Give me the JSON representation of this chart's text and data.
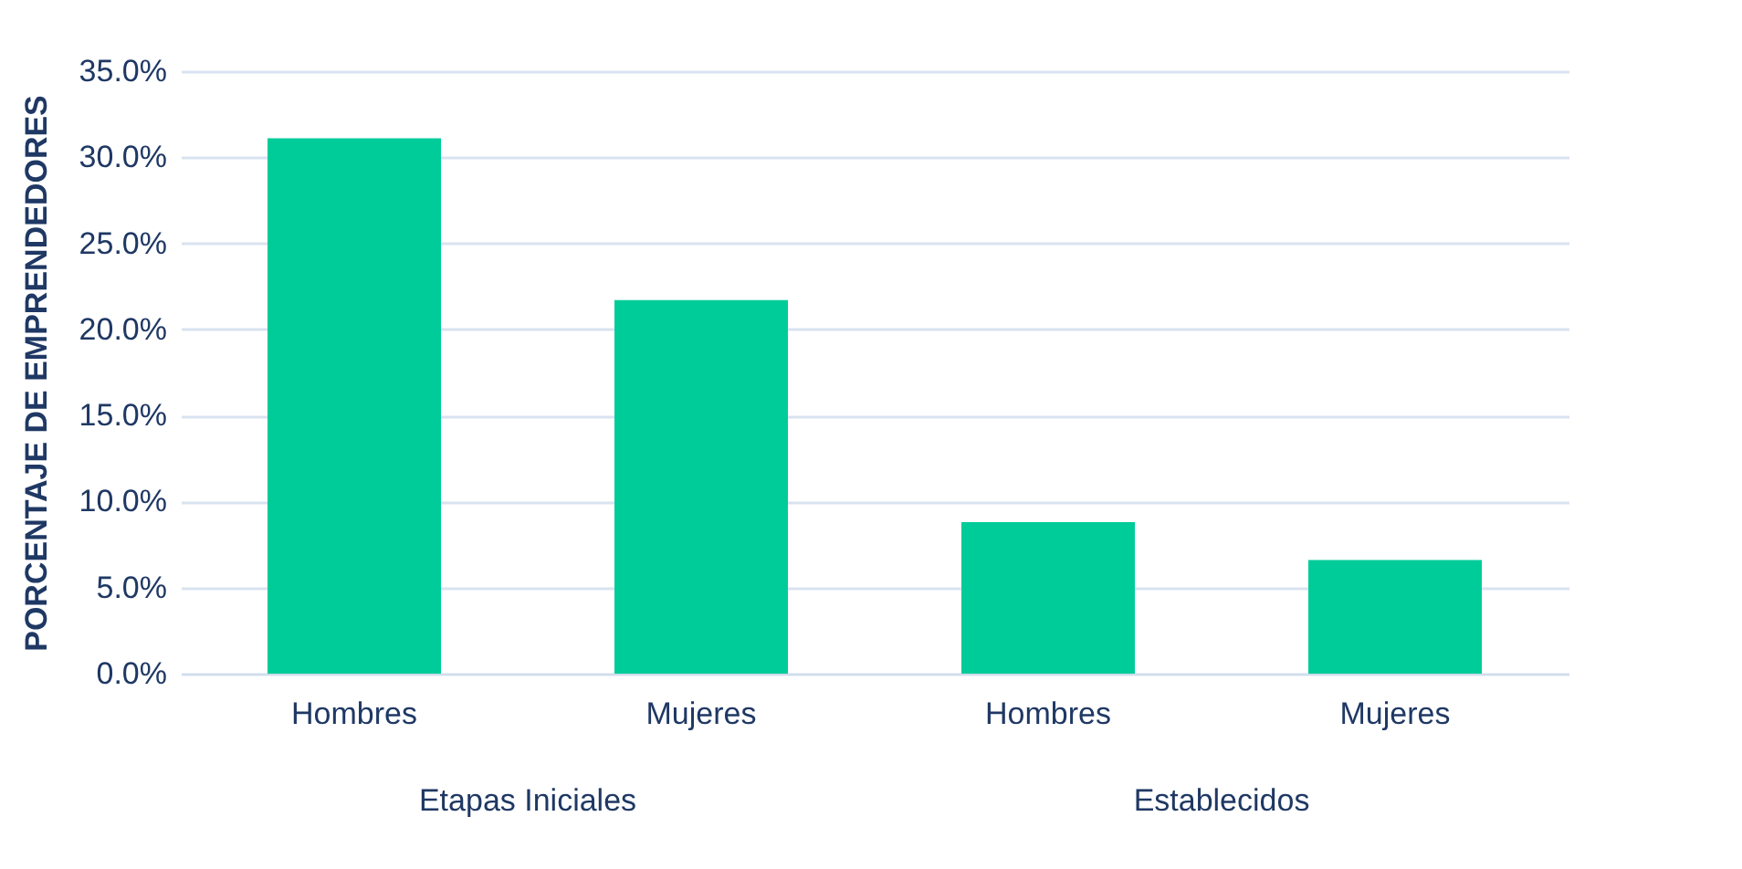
{
  "chart_data": {
    "type": "bar",
    "ylabel": "PORCENTAJE DE EMPRENDEDORES",
    "categories": [
      "Hombres",
      "Mujeres",
      "Hombres",
      "Mujeres"
    ],
    "values": [
      31.1,
      21.7,
      8.8,
      6.6
    ],
    "color": "#00cc99",
    "ylim": [
      0,
      35
    ],
    "yticks": [
      {
        "value": 0,
        "label": "0.0%"
      },
      {
        "value": 5,
        "label": "5.0%"
      },
      {
        "value": 10,
        "label": "10.0%"
      },
      {
        "value": 15,
        "label": "15.0%"
      },
      {
        "value": 20,
        "label": "20.0%"
      },
      {
        "value": 25,
        "label": "25.0%"
      },
      {
        "value": 30,
        "label": "30.0%"
      },
      {
        "value": 35,
        "label": "35.0%"
      }
    ],
    "grid": "y",
    "annotations": [
      "Etapas Iniciales",
      "Establecidos"
    ]
  }
}
